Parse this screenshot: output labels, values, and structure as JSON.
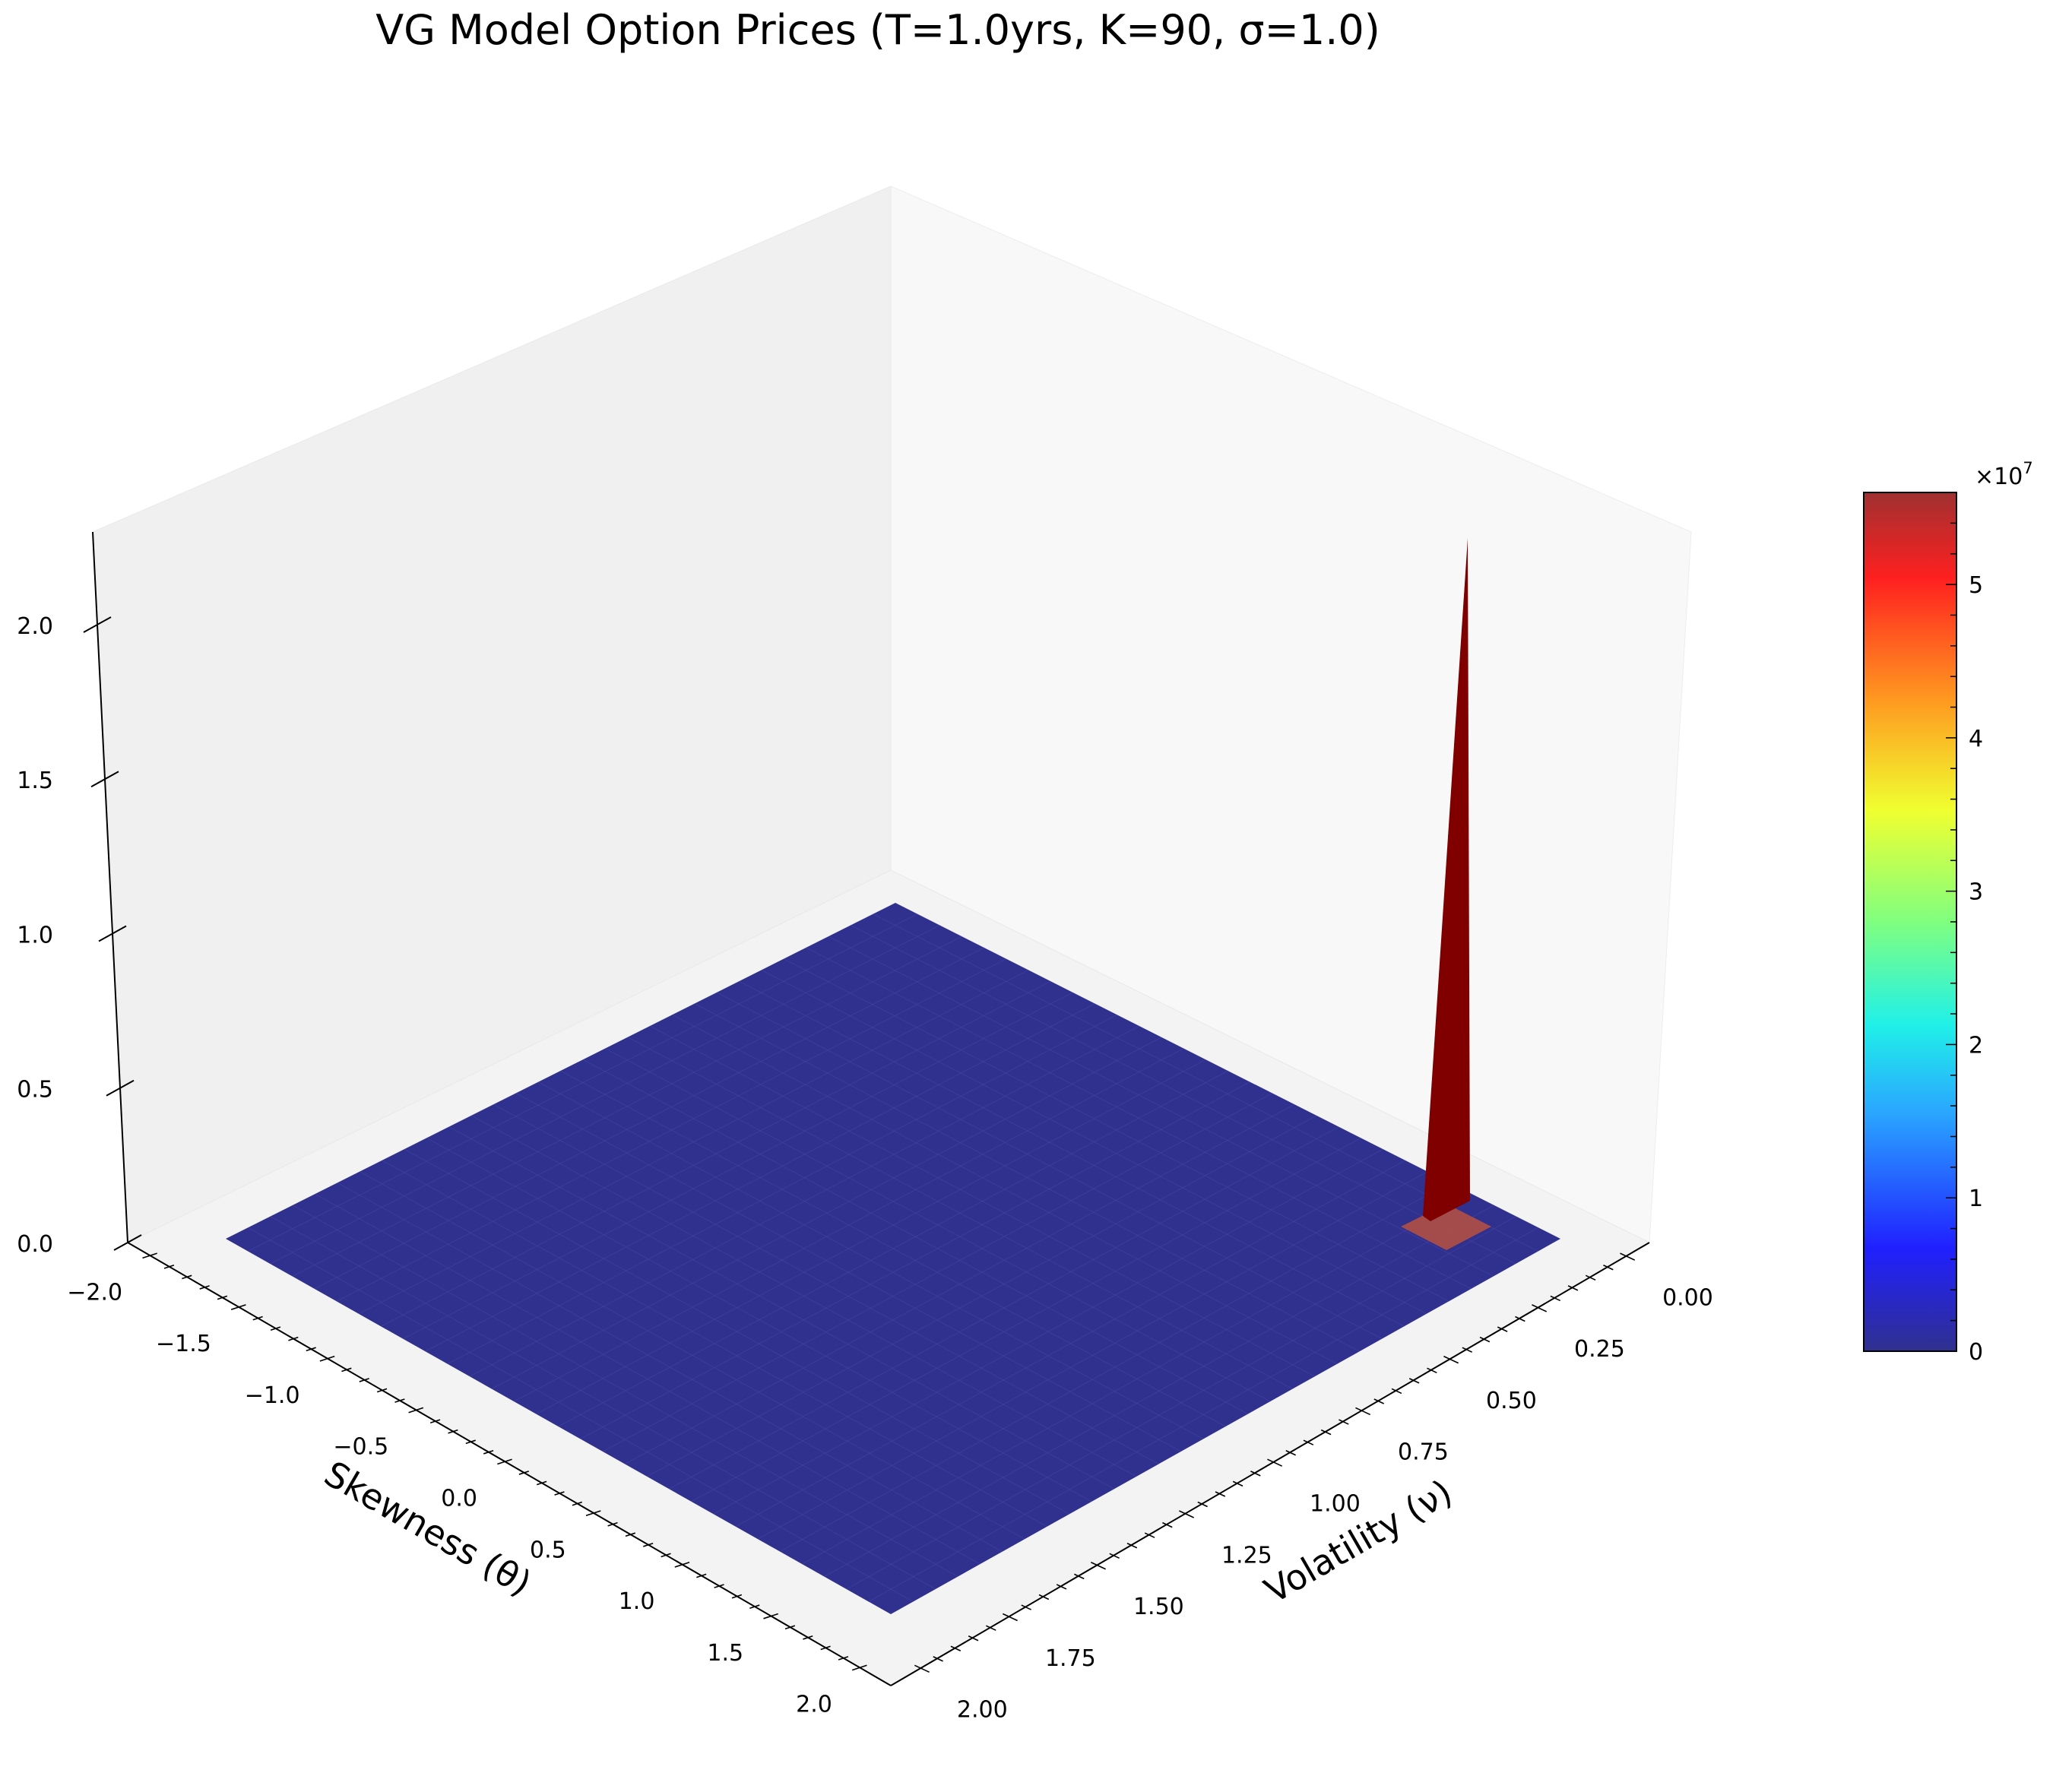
{
  "chart_data": {
    "type": "surface3d",
    "title": "VG Model Option Prices (T=1.0yrs, K=90, σ=1.0)",
    "xlabel": "Volatility (ν)",
    "ylabel": "Skewness (θ)",
    "zlabel": "",
    "x_ticks": [
      "0.00",
      "0.25",
      "0.50",
      "0.75",
      "1.00",
      "1.25",
      "1.50",
      "1.75",
      "2.00"
    ],
    "y_ticks": [
      "−2.0",
      "−1.5",
      "−1.0",
      "−0.5",
      "0.0",
      "0.5",
      "1.0",
      "1.5",
      "2.0"
    ],
    "z_ticks": [
      "0.0",
      "0.5",
      "1.0",
      "1.5",
      "2.0"
    ],
    "x_range": [
      0.0,
      2.0
    ],
    "y_range": [
      -2.0,
      2.0
    ],
    "surface": {
      "base_value": 0,
      "spike": {
        "volatility": 0.0,
        "skewness": 2.0,
        "value": 230000000.0
      }
    },
    "colorbar": {
      "colormap": "jet",
      "ticks": [
        "0",
        "1",
        "2",
        "3",
        "4",
        "5"
      ],
      "multiplier": "×10",
      "exponent": "7",
      "range": [
        0,
        5.6
      ]
    },
    "colors": {
      "surface": "#30308f",
      "spike": "#800000",
      "pane_left": "#f0f0f0",
      "pane_right": "#f8f8f8",
      "floor": "#f3f3f3"
    }
  }
}
